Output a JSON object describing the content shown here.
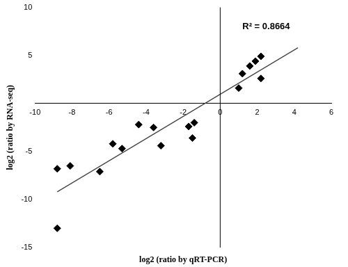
{
  "chart_data": {
    "type": "scatter",
    "annotation": "R² = 0.8664",
    "x_label": "log2 (ratio by qRT-PCR)",
    "y_label": "log2 (ratio by RNA-seq)",
    "x": [
      -8.8,
      -8.8,
      -8.1,
      -6.5,
      -5.8,
      -5.3,
      -4.4,
      -3.6,
      -3.2,
      -1.7,
      -1.5,
      -1.4,
      1.0,
      1.2,
      1.6,
      1.9,
      2.2,
      2.2
    ],
    "values": [
      -6.8,
      -13.0,
      -6.5,
      -7.1,
      -4.2,
      -4.7,
      -2.2,
      -2.5,
      -4.4,
      -2.4,
      -3.6,
      -2.0,
      1.6,
      3.1,
      3.9,
      4.4,
      4.9,
      2.6
    ],
    "color": "#000000",
    "marker": "diamond",
    "trend_line": {
      "x": [
        -8.8,
        4.2
      ],
      "y": [
        -9.2,
        5.8
      ]
    },
    "xlim": [
      -10,
      6
    ],
    "xticks": [
      -10,
      -8,
      -6,
      -4,
      -2,
      0,
      2,
      4,
      6
    ],
    "ylim": [
      -15,
      10
    ],
    "yticks": [
      -15,
      -10,
      -5,
      5,
      10
    ],
    "grid": false
  }
}
